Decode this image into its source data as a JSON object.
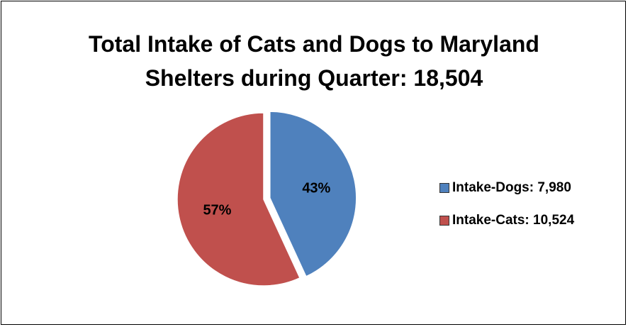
{
  "chart_data": {
    "type": "pie",
    "title": "Total Intake of Cats and Dogs to Maryland Shelters during Quarter: 18,504",
    "title_lines": [
      "Total Intake of Cats and Dogs to Maryland",
      "Shelters during Quarter: 18,504"
    ],
    "total": 18504,
    "slices": [
      {
        "name": "Intake-Dogs",
        "value": 7980,
        "percent": 43,
        "percent_label": "43%",
        "legend_label": "Intake-Dogs: 7,980",
        "color": "#4F81BD",
        "exploded": true
      },
      {
        "name": "Intake-Cats",
        "value": 10524,
        "percent": 57,
        "percent_label": "57%",
        "legend_label": "Intake-Cats: 10,524",
        "color": "#C0504D",
        "exploded": false
      }
    ],
    "legend_position": "right"
  }
}
